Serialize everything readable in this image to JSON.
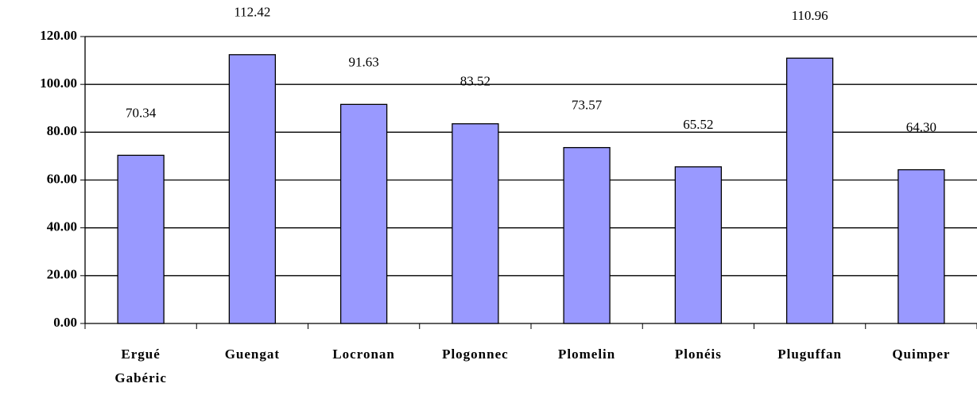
{
  "chart_data": {
    "type": "bar",
    "categories": [
      "Ergué Gabéric",
      "Guengat",
      "Locronan",
      "Plogonnec",
      "Plomelin",
      "Plonéis",
      "Pluguffan",
      "Quimper"
    ],
    "values": [
      70.34,
      112.42,
      91.63,
      83.52,
      73.57,
      65.52,
      110.96,
      64.3
    ],
    "value_labels": [
      "70.34",
      "112.42",
      "91.63",
      "83.52",
      "73.57",
      "65.52",
      "110.96",
      "64.30"
    ],
    "color": "#9999ff",
    "ylim": [
      0,
      120
    ],
    "yticks": [
      {
        "value": 0,
        "label": "0.00"
      },
      {
        "value": 20,
        "label": "20.00"
      },
      {
        "value": 40,
        "label": "40.00"
      },
      {
        "value": 60,
        "label": "60.00"
      },
      {
        "value": 80,
        "label": "80.00"
      },
      {
        "value": 100,
        "label": "100.00"
      },
      {
        "value": 120,
        "label": "120.00"
      }
    ],
    "grid": true
  }
}
